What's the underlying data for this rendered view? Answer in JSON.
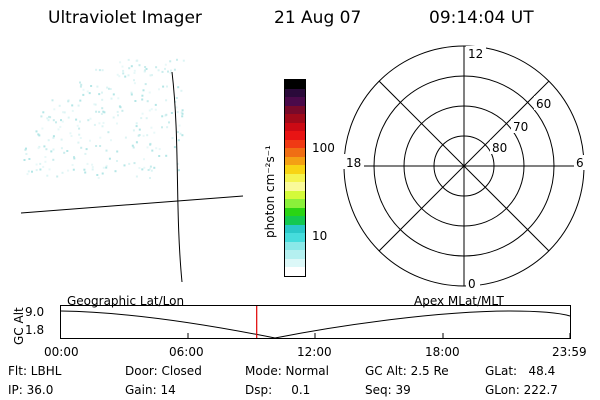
{
  "header": {
    "instrument": "Ultraviolet Imager",
    "date": "21 Aug 07",
    "time": "09:14:04 UT"
  },
  "colorbar": {
    "label": "photon cm⁻²s⁻¹",
    "tick_100": "100",
    "tick_10": "10",
    "colors": [
      "#000000",
      "#2a0a3a",
      "#4a0a4a",
      "#780a2a",
      "#a00a1a",
      "#cc0a14",
      "#e81414",
      "#f03a14",
      "#f06e14",
      "#f4a014",
      "#f8d414",
      "#f4f450",
      "#fafa9a",
      "#d4fa3a",
      "#8af03a",
      "#2ad414",
      "#14c850",
      "#2ac8c8",
      "#46dcdc",
      "#8ae8e8",
      "#b4f0f0",
      "#dcf8f8",
      "#ffffff"
    ]
  },
  "polar": {
    "mlt_top": "12",
    "mlt_left": "18",
    "mlt_right": "6",
    "mlt_bottom": "0",
    "lat_60": "60",
    "lat_70": "70",
    "lat_80": "80"
  },
  "timeline": {
    "ylabel": "GC Alt",
    "left_title": "Geographic Lat/Lon",
    "right_title": "Apex MLat/MLT",
    "ymax": "9.0",
    "ymin": "1.8",
    "ticks": [
      "00:00",
      "06:00",
      "12:00",
      "18:00",
      "23:59"
    ],
    "current_time_fraction": 0.3848
  },
  "info": {
    "flt": "Flt: LBHL",
    "ip": "IP: 36.0",
    "door": "Door: Closed",
    "gain": "Gain: 14",
    "mode": "Mode: Normal",
    "dsp": "Dsp:     0.1",
    "gcalt": "GC Alt: 2.5 Re",
    "seq": "Seq: 39",
    "glat": "GLat:   48.4",
    "glon": "GLon: 222.7"
  }
}
